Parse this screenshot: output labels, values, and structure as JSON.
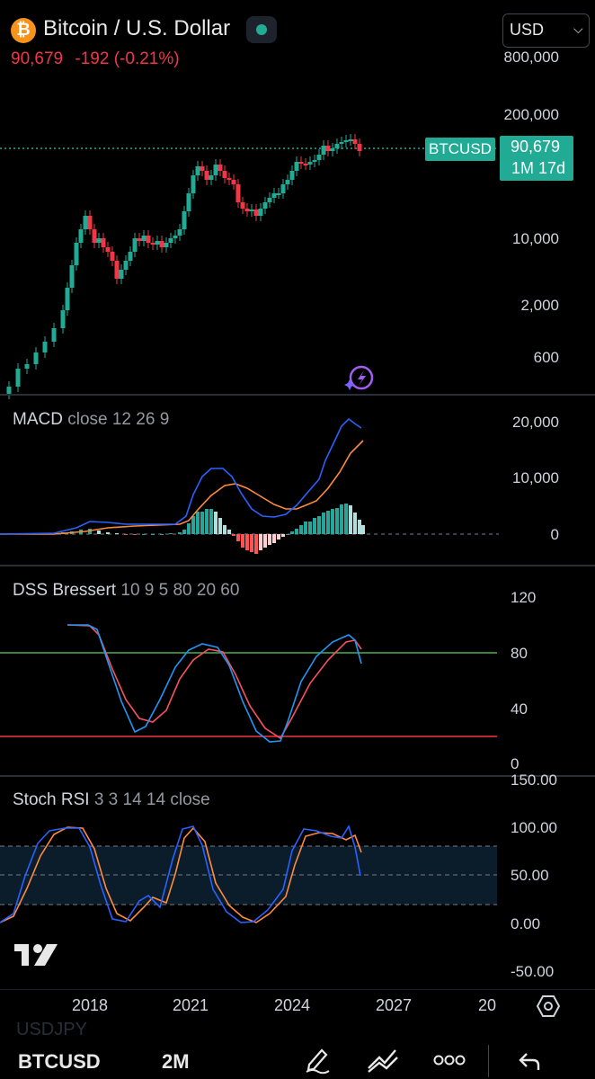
{
  "header": {
    "title": "Bitcoin / U.S. Dollar",
    "coin_symbol": "₿",
    "price": "90,679",
    "change": "-192",
    "change_pct": "(-0.21%)",
    "currency": "USD",
    "colors": {
      "accent": "#22ab94",
      "down": "#f23645",
      "coin": "#f7931a"
    }
  },
  "price_panel": {
    "y_ticks": [
      "800,000",
      "200,000",
      "10,000",
      "2,000",
      "600"
    ],
    "symbol_badge": "BTCUSD",
    "last_price": "90,679",
    "countdown": "1M 17d"
  },
  "macd": {
    "name": "MACD",
    "params": "close 12 26 9",
    "y_ticks": [
      "20,000",
      "10,000",
      "0"
    ]
  },
  "dss": {
    "name": "DSS Bressert",
    "params": "10 9 5 80 20 60",
    "y_ticks": [
      "120",
      "80",
      "40",
      "0"
    ]
  },
  "stoch": {
    "name": "Stoch RSI",
    "params": "3 3 14 14 close",
    "y_ticks": [
      "150.00",
      "100.00",
      "50.00",
      "0.00",
      "-50.00"
    ]
  },
  "x_axis": {
    "labels": [
      "2018",
      "2021",
      "2024",
      "2027",
      "20"
    ]
  },
  "bottom_bar": {
    "ghost_symbol": "USDJPY",
    "symbol": "BTCUSD",
    "interval": "2M"
  },
  "icons": [
    "bitcoin-icon",
    "market-status-icon",
    "chevron-down-icon",
    "ai-sparkle-icon",
    "tradingview-logo-icon",
    "settings-icon",
    "pen-icon",
    "trendline-icon",
    "more-icon",
    "undo-icon"
  ]
}
